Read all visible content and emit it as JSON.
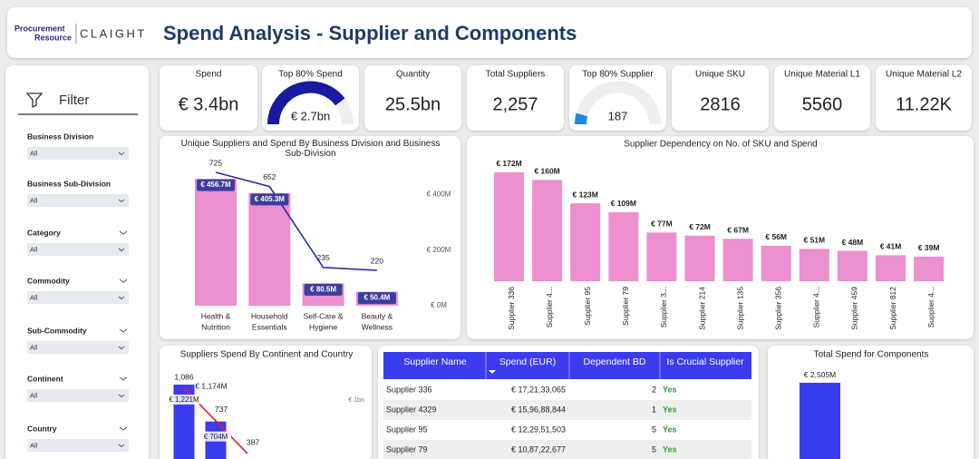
{
  "header": {
    "logo": [
      "Procurement",
      "Resource"
    ],
    "brand": "CLAIGHT",
    "title": "Spend Analysis - Supplier and Components"
  },
  "filter": {
    "title": "Filter",
    "fields": [
      {
        "label": "Business Division",
        "value": "All"
      },
      {
        "label": "Business Sub-Division",
        "value": "All"
      },
      {
        "label": "Category",
        "value": "All"
      },
      {
        "label": "Commodity",
        "value": "All"
      },
      {
        "label": "Sub-Commodity",
        "value": "All"
      },
      {
        "label": "Continent",
        "value": "All"
      },
      {
        "label": "Country",
        "value": "All"
      }
    ]
  },
  "kpis": [
    {
      "label": "Spend",
      "value": "€ 3.4bn"
    },
    {
      "label": "Top 80% Spend",
      "value": "€ 2.7bn",
      "gauge": {
        "value": 2.7,
        "max": 3.4,
        "color": "#1a1aa0"
      }
    },
    {
      "label": "Quantity",
      "value": "25.5bn"
    },
    {
      "label": "Total Suppliers",
      "value": "2,257"
    },
    {
      "label": "Top 80% Supplier",
      "value": "187",
      "gauge": {
        "value": 187,
        "max": 2257,
        "color": "#1e88e5"
      }
    },
    {
      "label": "Unique SKU",
      "value": "2816"
    },
    {
      "label": "Unique Material L1",
      "value": "5560"
    },
    {
      "label": "Unique Material L2",
      "value": "11.22K"
    }
  ],
  "division_chart": {
    "type": "bar",
    "title": "Unique Suppliers and Spend By Business Division and Business Sub-Division",
    "categories": [
      [
        "Health &",
        "Nutrition"
      ],
      [
        "Household",
        "Essentials"
      ],
      [
        "Self-Care &",
        "Hygiene"
      ],
      [
        "Beauty &",
        "Wellness"
      ]
    ],
    "series": [
      {
        "color": "#ec8fcf",
        "values": [
          456.7,
          405.3,
          80.5,
          50.4
        ],
        "value_labels": [
          "€ 456.7M",
          "€ 405.3M",
          "€ 80.5M",
          "€ 50.4M"
        ]
      },
      {
        "color": "#2b2fa8",
        "axis": "y2",
        "values": [
          725,
          652,
          235,
          220
        ]
      }
    ],
    "ylim": [
      0,
      480
    ],
    "yticks": [
      {
        "value": 0,
        "label": "€ 0M"
      },
      {
        "value": 200,
        "label": "€ 200M"
      },
      {
        "value": 400,
        "label": "€ 400M"
      }
    ],
    "y2lim": [
      38,
      725
    ]
  },
  "dependency_chart": {
    "type": "bar",
    "title": "Supplier Dependency on No. of SKU and Spend",
    "categories": [
      "Supplier 336",
      "Supplier 4...",
      "Supplier 95",
      "Supplier 79",
      "Supplier 3...",
      "Supplier 214",
      "Supplier 135",
      "Supplier 356",
      "Supplier 4...",
      "Supplier 459",
      "Supplier 812",
      "Supplier 4..."
    ],
    "values": [
      172,
      160,
      123,
      109,
      77,
      72,
      67,
      56,
      51,
      48,
      41,
      39
    ],
    "value_labels": [
      "€ 172M",
      "€ 160M",
      "€ 123M",
      "€ 109M",
      "€ 77M",
      "€ 72M",
      "€ 67M",
      "€ 56M",
      "€ 51M",
      "€ 48M",
      "€ 41M",
      "€ 39M"
    ],
    "color": "#ec8fcf",
    "ylim": [
      0,
      182
    ]
  },
  "continent_chart": {
    "type": "bar",
    "title": "Suppliers Spend By Continent and Country",
    "series": [
      {
        "color": "#3b3bf0",
        "values": [
          1221,
          704
        ],
        "value_labels": [
          "€ 1,221M",
          "€ 704M"
        ]
      },
      {
        "color": "#e0202a",
        "axis": "y2",
        "values": [
          1086,
          737,
          387
        ],
        "value_labels": [
          "1,086",
          "737",
          "387"
        ]
      }
    ],
    "annotation": "€ 1,174M",
    "ylim": [
      0,
      1399
    ],
    "yticks": [
      {
        "value": 1000,
        "label": "€ 1bn"
      }
    ],
    "y2lim": [
      193,
      1261
    ]
  },
  "table": {
    "columns": [
      "Supplier Name",
      "Spend (EUR)",
      "Dependent BD",
      "Is Crucial Supplier"
    ],
    "rows": [
      [
        "Supplier 336",
        "€ 17,21,33,065",
        2,
        "Yes"
      ],
      [
        "Supplier 4329",
        "€ 15,96,88,844",
        1,
        "Yes"
      ],
      [
        "Supplier 95",
        "€ 12,29,51,503",
        5,
        "Yes"
      ],
      [
        "Supplier 79",
        "€ 10,87,22,677",
        5,
        "Yes"
      ]
    ]
  },
  "components_chart": {
    "type": "bar",
    "title": "Total Spend for Components",
    "values": [
      2505
    ],
    "value_labels": [
      "€ 2,505M"
    ],
    "color": "#3b3bf0",
    "ylim": [
      0,
      2810
    ]
  }
}
